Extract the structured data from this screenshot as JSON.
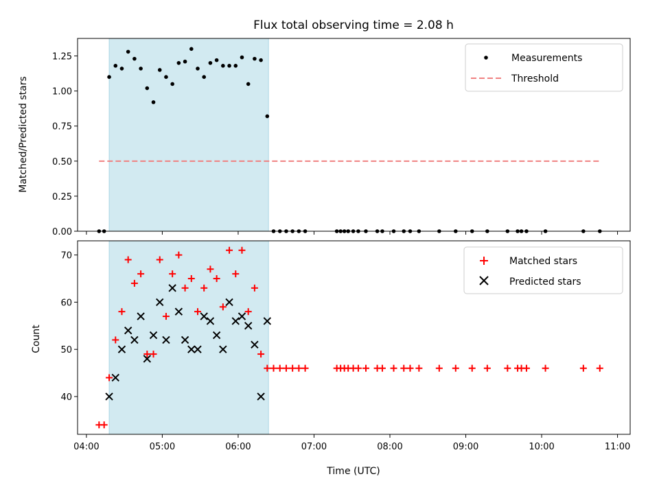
{
  "chart_data": [
    {
      "type": "scatter",
      "title": "Flux total observing time = 2.08 h",
      "xlabel": "",
      "ylabel": "Matched/Predicted stars",
      "ylim": [
        0,
        1.375
      ],
      "yticks": [
        "0.00",
        "0.25",
        "0.50",
        "0.75",
        "1.00",
        "1.25"
      ],
      "xlim": [
        "03:53",
        "11:10"
      ],
      "legend_position": "top-right",
      "shaded_span": [
        "04:18",
        "06:24"
      ],
      "series": [
        {
          "name": "Measurements",
          "kind": "scatter",
          "color": "#000000",
          "x": [
            "04:10",
            "04:14",
            "04:18",
            "04:23",
            "04:28",
            "04:33",
            "04:38",
            "04:43",
            "04:48",
            "04:53",
            "04:58",
            "05:03",
            "05:08",
            "05:13",
            "05:18",
            "05:23",
            "05:28",
            "05:33",
            "05:38",
            "05:43",
            "05:48",
            "05:53",
            "05:58",
            "06:03",
            "06:08",
            "06:13",
            "06:18",
            "06:23",
            "06:28",
            "06:33",
            "06:38",
            "06:43",
            "06:48",
            "06:53",
            "07:18",
            "07:21",
            "07:24",
            "07:27",
            "07:31",
            "07:35",
            "07:41",
            "07:50",
            "07:54",
            "08:03",
            "08:11",
            "08:16",
            "08:23",
            "08:39",
            "08:52",
            "09:05",
            "09:17",
            "09:33",
            "09:41",
            "09:44",
            "09:48",
            "10:03",
            "10:33",
            "10:46"
          ],
          "values": [
            0,
            0,
            1.1,
            1.18,
            1.16,
            1.28,
            1.23,
            1.16,
            1.02,
            0.92,
            1.15,
            1.1,
            1.05,
            1.2,
            1.21,
            1.3,
            1.16,
            1.1,
            1.2,
            1.22,
            1.18,
            1.18,
            1.18,
            1.24,
            1.05,
            1.23,
            1.22,
            0.82,
            0,
            0,
            0,
            0,
            0,
            0,
            0,
            0,
            0,
            0,
            0,
            0,
            0,
            0,
            0,
            0,
            0,
            0,
            0,
            0,
            0,
            0,
            0,
            0,
            0,
            0,
            0,
            0,
            0,
            0
          ]
        },
        {
          "name": "Threshold",
          "kind": "line",
          "dashed": true,
          "color": "#f08080",
          "x": [
            "04:10",
            "10:46"
          ],
          "values": [
            0.5,
            0.5
          ]
        }
      ]
    },
    {
      "type": "scatter",
      "title": "",
      "xlabel": "Time (UTC)",
      "ylabel": "Count",
      "ylim": [
        32,
        73
      ],
      "yticks": [
        "40",
        "50",
        "60",
        "70"
      ],
      "xlim": [
        "03:53",
        "11:10"
      ],
      "xticks": [
        "04:00",
        "05:00",
        "06:00",
        "07:00",
        "08:00",
        "09:00",
        "10:00",
        "11:00"
      ],
      "legend_position": "top-right",
      "shaded_span": [
        "04:18",
        "06:24"
      ],
      "series": [
        {
          "name": "Matched stars",
          "kind": "plus",
          "color": "#ff0000",
          "x": [
            "04:10",
            "04:14",
            "04:18",
            "04:23",
            "04:28",
            "04:33",
            "04:38",
            "04:43",
            "04:48",
            "04:53",
            "04:58",
            "05:03",
            "05:08",
            "05:13",
            "05:18",
            "05:23",
            "05:28",
            "05:33",
            "05:38",
            "05:43",
            "05:48",
            "05:53",
            "05:58",
            "06:03",
            "06:08",
            "06:13",
            "06:18",
            "06:23",
            "06:28",
            "06:33",
            "06:38",
            "06:43",
            "06:48",
            "06:53",
            "07:18",
            "07:21",
            "07:24",
            "07:27",
            "07:31",
            "07:35",
            "07:41",
            "07:50",
            "07:54",
            "08:03",
            "08:11",
            "08:16",
            "08:23",
            "08:39",
            "08:52",
            "09:05",
            "09:17",
            "09:33",
            "09:41",
            "09:44",
            "09:48",
            "10:03",
            "10:33",
            "10:46"
          ],
          "values": [
            34,
            34,
            44,
            52,
            58,
            69,
            64,
            66,
            49,
            49,
            69,
            57,
            66,
            70,
            63,
            65,
            58,
            63,
            67,
            65,
            59,
            71,
            66,
            71,
            58,
            63,
            49,
            46,
            46,
            46,
            46,
            46,
            46,
            46,
            46,
            46,
            46,
            46,
            46,
            46,
            46,
            46,
            46,
            46,
            46,
            46,
            46,
            46,
            46,
            46,
            46,
            46,
            46,
            46,
            46,
            46,
            46,
            46
          ]
        },
        {
          "name": "Predicted stars",
          "kind": "x",
          "color": "#000000",
          "x": [
            "04:18",
            "04:23",
            "04:28",
            "04:33",
            "04:38",
            "04:43",
            "04:48",
            "04:53",
            "04:58",
            "05:03",
            "05:08",
            "05:13",
            "05:18",
            "05:23",
            "05:28",
            "05:33",
            "05:38",
            "05:43",
            "05:48",
            "05:53",
            "05:58",
            "06:03",
            "06:08",
            "06:13",
            "06:18",
            "06:23"
          ],
          "values": [
            40,
            44,
            50,
            54,
            52,
            57,
            48,
            53,
            60,
            52,
            63,
            58,
            52,
            50,
            50,
            57,
            56,
            53,
            50,
            60,
            56,
            57,
            55,
            51,
            40,
            56
          ]
        }
      ]
    }
  ]
}
